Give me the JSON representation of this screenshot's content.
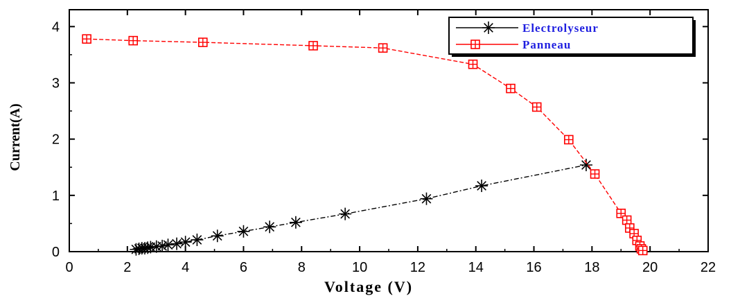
{
  "chart_data": {
    "type": "line",
    "xlabel": "Voltage (V)",
    "ylabel": "Current(A)",
    "xlim": [
      0,
      22
    ],
    "ylim": [
      0,
      4.3
    ],
    "xticks": [
      0,
      2,
      4,
      6,
      8,
      10,
      12,
      14,
      16,
      18,
      20,
      22
    ],
    "yticks": [
      0,
      1,
      2,
      3,
      4
    ],
    "grid": false,
    "legend_position": "top-right",
    "series": [
      {
        "name": "Electrolyseur",
        "color": "#000000",
        "marker": "asterisk",
        "x": [
          2.3,
          2.4,
          2.5,
          2.6,
          2.7,
          2.8,
          3.0,
          3.2,
          3.4,
          3.7,
          4.0,
          4.4,
          5.1,
          6.0,
          6.9,
          7.8,
          9.5,
          12.3,
          14.2,
          17.8
        ],
        "y": [
          0.04,
          0.05,
          0.06,
          0.06,
          0.07,
          0.08,
          0.09,
          0.1,
          0.12,
          0.14,
          0.17,
          0.21,
          0.28,
          0.36,
          0.44,
          0.52,
          0.67,
          0.94,
          1.17,
          1.54
        ]
      },
      {
        "name": "Panneau",
        "color": "#ff0000",
        "marker": "boxed-plus",
        "x": [
          0.6,
          2.2,
          4.6,
          8.4,
          10.8,
          13.9,
          15.2,
          16.1,
          17.2,
          18.1,
          19.0,
          19.2,
          19.3,
          19.45,
          19.55,
          19.65,
          19.7,
          19.75
        ],
        "y": [
          3.78,
          3.75,
          3.72,
          3.66,
          3.62,
          3.33,
          2.9,
          2.57,
          1.99,
          1.38,
          0.68,
          0.56,
          0.42,
          0.32,
          0.2,
          0.1,
          0.05,
          0.02
        ]
      }
    ]
  }
}
